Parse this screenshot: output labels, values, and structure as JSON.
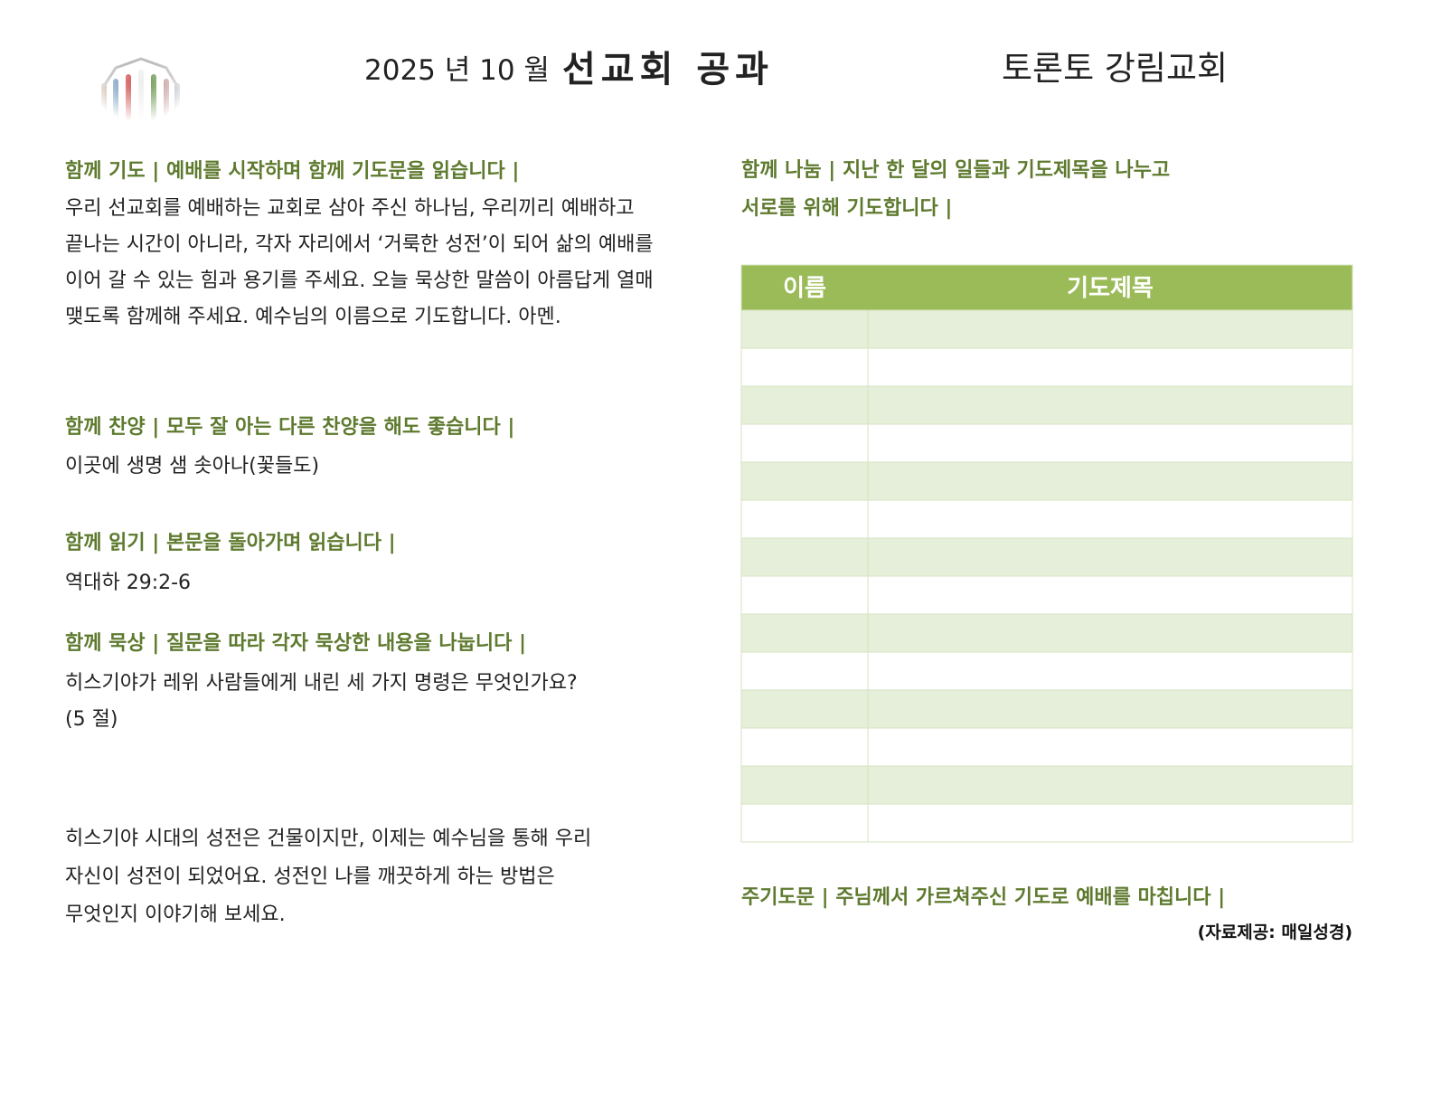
{
  "header": {
    "date": "2025 년 10 월",
    "title": "선교회 공과",
    "church": "토론토 강림교회"
  },
  "left": {
    "sections": [
      {
        "heading": "함께 기도 | 예배를 시작하며 함께 기도문을 읽습니다 |",
        "lines": [
          "우리 선교회를 예배하는 교회로 삼아 주신 하나님, 우리끼리 예배하고",
          "끝나는 시간이 아니라, 각자 자리에서 ‘거룩한 성전’이 되어 삶의 예배를",
          "이어 갈 수 있는 힘과 용기를 주세요. 오늘 묵상한 말씀이 아름답게 열매",
          "맺도록 함께해 주세요. 예수님의 이름으로 기도합니다. 아멘."
        ]
      },
      {
        "heading": "함께 찬양 | 모두 잘 아는 다른 찬양을 해도 좋습니다 |",
        "lines": [
          "이곳에 생명 샘 솟아나(꽃들도)"
        ]
      },
      {
        "heading": "함께 읽기 | 본문을 돌아가며 읽습니다 |",
        "lines": [
          "역대하 29:2-6"
        ]
      },
      {
        "heading": "함께 묵상 | 질문을 따라 각자 묵상한 내용을 나눕니다 |",
        "lines": [
          "히스기야가 레위 사람들에게 내린 세 가지 명령은 무엇인가요?",
          "(5 절)"
        ]
      }
    ],
    "paragraph": [
      "히스기야 시대의 성전은 건물이지만, 이제는 예수님을 통해 우리",
      "자신이 성전이 되었어요. 성전인 나를 깨끗하게 하는 방법은",
      "무엇인지 이야기해 보세요."
    ]
  },
  "right": {
    "heading": [
      "함께 나눔 | 지난 한 달의 일들과 기도제목을 나누고",
      "서로를 위해 기도합니다 |"
    ],
    "table": {
      "headers": [
        "이름",
        "기도제목"
      ]
    },
    "closing": "주기도문 | 주님께서 가르쳐주신 기도로 예배를 마칩니다 |",
    "credit": "(자료제공: 매일성경)"
  }
}
